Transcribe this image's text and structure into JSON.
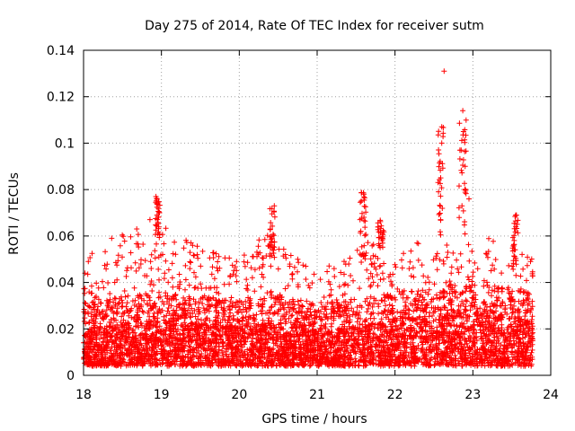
{
  "chart_data": {
    "type": "scatter",
    "title": "Day 275 of 2014, Rate Of TEC Index for receiver sutm",
    "xlabel": "GPS time / hours",
    "ylabel": "ROTI / TECUs",
    "xlim": [
      18,
      24
    ],
    "ylim": [
      0,
      0.14
    ],
    "x_ticks": [
      "18",
      "19",
      "20",
      "21",
      "22",
      "23",
      "24"
    ],
    "y_ticks": [
      "0",
      "0.02",
      "0.04",
      "0.06",
      "0.08",
      "0.1",
      "0.12",
      "0.14"
    ],
    "grid": true,
    "marker": "+",
    "color": "#ff0000",
    "x_data_end": 23.77,
    "baseline": [
      [
        18.0,
        0.018
      ],
      [
        18.5,
        0.02
      ],
      [
        19.0,
        0.022
      ],
      [
        19.5,
        0.02
      ],
      [
        20.0,
        0.019
      ],
      [
        20.5,
        0.021
      ],
      [
        21.0,
        0.017
      ],
      [
        21.5,
        0.019
      ],
      [
        22.0,
        0.022
      ],
      [
        22.5,
        0.024
      ],
      [
        23.0,
        0.025
      ],
      [
        23.5,
        0.024
      ],
      [
        23.77,
        0.022
      ]
    ],
    "envelope": [
      [
        18.0,
        0.05
      ],
      [
        18.4,
        0.06
      ],
      [
        18.8,
        0.07
      ],
      [
        19.0,
        0.065
      ],
      [
        19.2,
        0.062
      ],
      [
        19.5,
        0.055
      ],
      [
        20.0,
        0.05
      ],
      [
        20.4,
        0.065
      ],
      [
        20.6,
        0.058
      ],
      [
        21.0,
        0.045
      ],
      [
        21.3,
        0.05
      ],
      [
        21.6,
        0.06
      ],
      [
        22.0,
        0.05
      ],
      [
        22.4,
        0.06
      ],
      [
        22.8,
        0.055
      ],
      [
        23.2,
        0.06
      ],
      [
        23.6,
        0.055
      ],
      [
        23.77,
        0.05
      ]
    ],
    "features": [
      {
        "label": "spike",
        "x": [
          18.92,
          18.98
        ],
        "y": [
          0.058,
          0.077
        ]
      },
      {
        "label": "spike",
        "x": [
          20.38,
          20.46
        ],
        "y": [
          0.05,
          0.072
        ]
      },
      {
        "label": "spike",
        "x": [
          21.55,
          21.63
        ],
        "y": [
          0.05,
          0.079
        ]
      },
      {
        "label": "spike",
        "x": [
          21.78,
          21.86
        ],
        "y": [
          0.055,
          0.068
        ]
      },
      {
        "label": "spike",
        "x": [
          22.55,
          22.62
        ],
        "y": [
          0.06,
          0.107
        ]
      },
      {
        "label": "spike",
        "x": [
          22.82,
          22.92
        ],
        "y": [
          0.06,
          0.114
        ]
      },
      {
        "label": "spike",
        "x": [
          23.5,
          23.58
        ],
        "y": [
          0.045,
          0.069
        ]
      }
    ],
    "notable_points": [
      {
        "x": 22.63,
        "y": 0.131
      },
      {
        "x": 22.87,
        "y": 0.114
      },
      {
        "x": 22.6,
        "y": 0.107
      },
      {
        "x": 22.88,
        "y": 0.105
      },
      {
        "x": 22.6,
        "y": 0.1
      },
      {
        "x": 22.85,
        "y": 0.097
      },
      {
        "x": 22.9,
        "y": 0.09
      },
      {
        "x": 22.95,
        "y": 0.076
      },
      {
        "x": 21.6,
        "y": 0.078
      },
      {
        "x": 18.93,
        "y": 0.077
      },
      {
        "x": 20.45,
        "y": 0.073
      },
      {
        "x": 23.55,
        "y": 0.069
      }
    ]
  }
}
